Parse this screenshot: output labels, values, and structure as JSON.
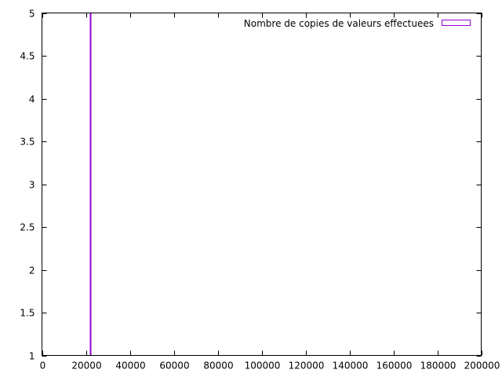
{
  "chart_data": {
    "type": "bar",
    "title": "",
    "xlabel": "",
    "ylabel": "",
    "xlim": [
      0,
      200000
    ],
    "ylim": [
      1,
      5
    ],
    "x_ticks": [
      0,
      20000,
      40000,
      60000,
      80000,
      100000,
      120000,
      140000,
      160000,
      180000,
      200000
    ],
    "x_tick_labels": [
      "0",
      "20000",
      "40000",
      "60000",
      "80000",
      "100000",
      "120000",
      "140000",
      "160000",
      "180000",
      "200000"
    ],
    "y_ticks": [
      1,
      1.5,
      2,
      2.5,
      3,
      3.5,
      4,
      4.5,
      5
    ],
    "y_tick_labels": [
      "1",
      "1.5",
      "2",
      "2.5",
      "3",
      "3.5",
      "4",
      "4.5",
      "5"
    ],
    "grid": false,
    "legend_position": "top-right",
    "series": [
      {
        "name": "Nombre de copies de valeurs effectuees",
        "color": "#9400d3",
        "style": "boxes",
        "points": [
          {
            "x": 22000,
            "y": 5
          }
        ]
      }
    ]
  }
}
